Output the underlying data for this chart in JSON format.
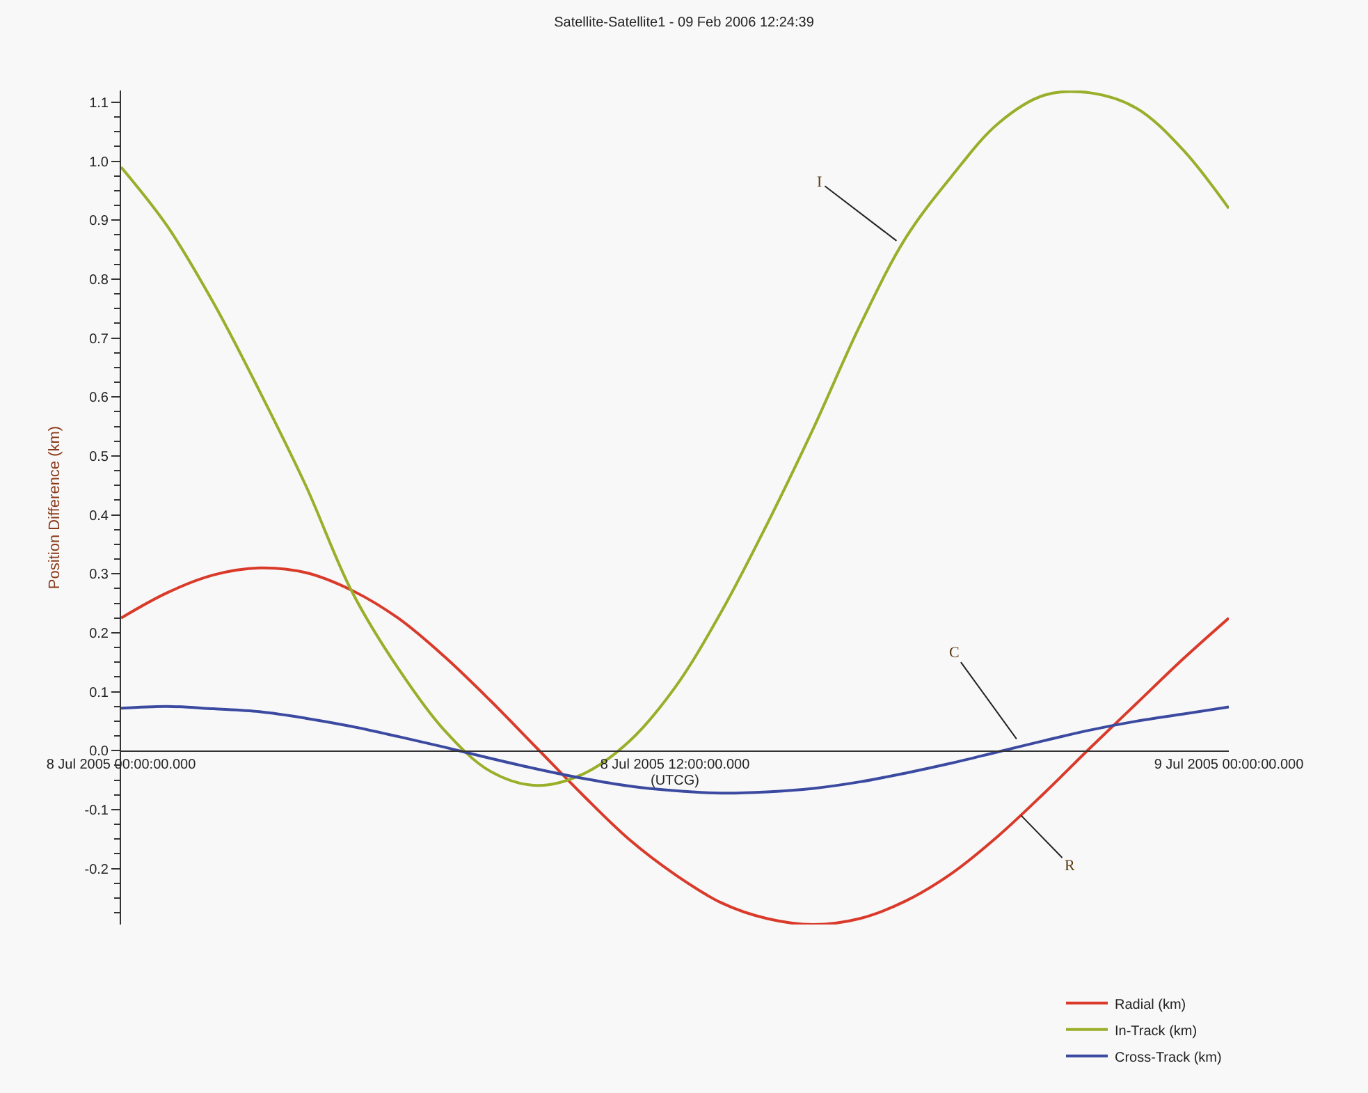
{
  "chart_data": {
    "type": "line",
    "title": "Satellite-Satellite1 - 09 Feb 2006 12:24:39",
    "xlabel": "(UTCG)",
    "ylabel": "Position Difference (km)",
    "x": [
      "2005-07-08T00:00",
      "2005-07-08T01:00",
      "2005-07-08T02:00",
      "2005-07-08T03:00",
      "2005-07-08T04:00",
      "2005-07-08T05:00",
      "2005-07-08T06:00",
      "2005-07-08T07:00",
      "2005-07-08T08:00",
      "2005-07-08T09:00",
      "2005-07-08T10:00",
      "2005-07-08T11:00",
      "2005-07-08T12:00",
      "2005-07-08T13:00",
      "2005-07-08T14:00",
      "2005-07-08T15:00",
      "2005-07-08T16:00",
      "2005-07-08T17:00",
      "2005-07-08T18:00",
      "2005-07-08T19:00",
      "2005-07-08T20:00",
      "2005-07-08T21:00",
      "2005-07-08T22:00",
      "2005-07-08T23:00",
      "2005-07-09T00:00"
    ],
    "series": [
      {
        "name": "Radial (km)",
        "color": "#d93a2a",
        "values": [
          0.225,
          0.268,
          0.298,
          0.31,
          0.302,
          0.272,
          0.225,
          0.16,
          0.085,
          0.005,
          -0.075,
          -0.15,
          -0.21,
          -0.258,
          -0.285,
          -0.295,
          -0.285,
          -0.255,
          -0.208,
          -0.145,
          -0.072,
          0.005,
          0.08,
          0.155,
          0.225
        ]
      },
      {
        "name": "In-Track (km)",
        "color": "#9aae2a",
        "values": [
          0.99,
          0.89,
          0.76,
          0.61,
          0.45,
          0.27,
          0.14,
          0.035,
          -0.035,
          -0.059,
          -0.04,
          0.015,
          0.107,
          0.235,
          0.385,
          0.547,
          0.72,
          0.87,
          0.975,
          1.064,
          1.112,
          1.116,
          1.09,
          1.02,
          0.92
        ]
      },
      {
        "name": "Cross-Track (km)",
        "color": "#3b4aa0",
        "values": [
          0.072,
          0.075,
          0.071,
          0.066,
          0.055,
          0.041,
          0.024,
          0.006,
          -0.013,
          -0.031,
          -0.047,
          -0.06,
          -0.068,
          -0.072,
          -0.07,
          -0.064,
          -0.053,
          -0.038,
          -0.021,
          -0.002,
          0.017,
          0.035,
          0.05,
          0.062,
          0.074
        ]
      }
    ],
    "xlim": [
      "2005-07-08T00:00",
      "2005-07-09T00:00"
    ],
    "xticks": [
      {
        "value": "2005-07-08T00:00",
        "label": "8 Jul 2005 00:00:00.000"
      },
      {
        "value": "2005-07-08T12:00",
        "label": "8 Jul 2005 12:00:00.000"
      },
      {
        "value": "2005-07-09T00:00",
        "label": "9 Jul 2005 00:00:00.000"
      }
    ],
    "ylim": [
      -0.295,
      1.12
    ],
    "yticks": [
      -0.2,
      -0.1,
      {
        "value": 0,
        "label": "0.0"
      },
      0.1,
      0.2,
      0.3,
      0.4,
      0.5,
      0.6,
      0.7,
      0.8,
      0.9,
      {
        "value": 1,
        "label": "1.0"
      },
      1.1
    ],
    "annotations": [
      {
        "text": "I",
        "x": "2005-07-08T16:48",
        "y": 0.865
      },
      {
        "text": "C",
        "x": "2005-07-08T19:24",
        "y": 0.02
      },
      {
        "text": "R",
        "x": "2005-07-08T19:30",
        "y": -0.11
      }
    ],
    "grid": false,
    "legend": "bottom right",
    "marker": "none",
    "line_style": "solid"
  }
}
